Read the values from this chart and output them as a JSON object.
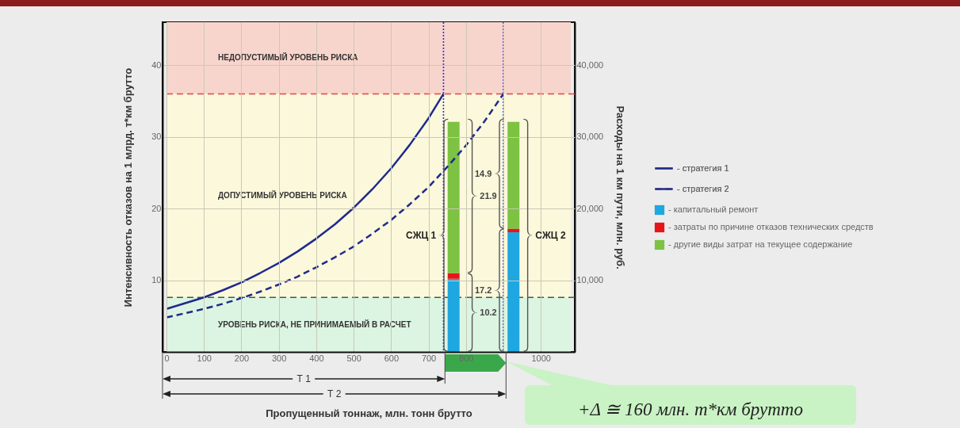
{
  "chart_data": {
    "type": "line",
    "xlabel": "Пропущенный тоннаж, млн. тонн брутто",
    "ylabel": "Интенсивность отказов на 1 млрд. т*км брутто",
    "y2label": "Расходы на 1 км пути, млн. руб.",
    "xlim": [
      0,
      1080
    ],
    "xticks": [
      0,
      100,
      200,
      300,
      400,
      500,
      600,
      700,
      800,
      {
        "value": 900,
        "label": null
      },
      1000
    ],
    "ylim": [
      0,
      46
    ],
    "yticks": [
      10,
      20,
      30,
      40
    ],
    "y2lim": [
      0,
      46000
    ],
    "y2ticks": [
      {
        "value": 10000,
        "label": "10,000"
      },
      {
        "value": 20000,
        "label": "20,000"
      },
      {
        "value": 30000,
        "label": "30,000"
      },
      {
        "value": 40000,
        "label": "40,000"
      }
    ],
    "grid": true,
    "legend": "right",
    "stacked": true,
    "series": [
      {
        "name": "- стратегия 1",
        "color": "#1f2a8c",
        "line_style": "solid",
        "x": [
          0,
          50,
          100,
          150,
          200,
          250,
          300,
          350,
          400,
          450,
          500,
          550,
          600,
          650,
          700,
          740
        ],
        "values": [
          6.0,
          6.8,
          7.6,
          8.6,
          9.7,
          11.0,
          12.4,
          14.0,
          15.8,
          17.8,
          20.1,
          22.7,
          25.6,
          28.9,
          32.6,
          36.0
        ]
      },
      {
        "name": "- стратегия 2",
        "color": "#1f2a8c",
        "line_style": "dashed",
        "x": [
          0,
          50,
          100,
          150,
          200,
          250,
          300,
          350,
          400,
          450,
          500,
          550,
          600,
          650,
          700,
          750,
          800,
          850,
          900
        ],
        "values": [
          4.8,
          5.4,
          6.0,
          6.7,
          7.5,
          8.4,
          9.4,
          10.5,
          11.8,
          13.2,
          14.7,
          16.5,
          18.4,
          20.6,
          23.0,
          25.8,
          28.8,
          32.2,
          36.0
        ]
      },
      {
        "name": "- капитальный ремонт",
        "type": "bar",
        "axis": "y2",
        "color": "#1ea7e1",
        "x": [
          767,
          927
        ],
        "values": [
          10200,
          16700
        ]
      },
      {
        "name": "- затраты по причине отказов технических средств",
        "type": "bar",
        "axis": "y2",
        "color": "#e8141c",
        "x": [
          767,
          927
        ],
        "values": [
          800,
          500
        ]
      },
      {
        "name": "- другие виды затрат на текущее содержание",
        "type": "bar",
        "axis": "y2",
        "color": "#7dc242",
        "x": [
          767,
          927
        ],
        "values": [
          21100,
          14900
        ]
      }
    ],
    "bands": [
      {
        "axis": "y",
        "from": 36,
        "to": 46,
        "label": "НЕДОПУСТИМЫЙ УРОВЕНЬ РИСКА",
        "color": "#f8d5cc"
      },
      {
        "axis": "y",
        "from": 7.6,
        "to": 36,
        "label": "ДОПУСТИМЫЙ УРОВЕНЬ РИСКА",
        "color": "#fbf8dc"
      },
      {
        "axis": "y",
        "from": 0,
        "to": 7.6,
        "label": "УРОВЕНЬ РИСКА, НЕ ПРИНИМАЕМЫЙ В РАСЧЕТ",
        "color": "#dcf5e2"
      }
    ],
    "ref_lines": [
      {
        "axis": "y",
        "value": 36,
        "color": "#e04848",
        "line_style": "dashed"
      },
      {
        "axis": "y",
        "value": 7.6,
        "color": "#3f5f3f",
        "line_style": "dashed"
      },
      {
        "axis": "x",
        "value": 740,
        "color": "#2a35d0",
        "line_style": "dotted"
      },
      {
        "axis": "x",
        "value": 900,
        "color": "#2a35d0",
        "line_style": "dotted"
      }
    ],
    "annotations": [
      "Т 1",
      "Т 2",
      "+Δ ≅ 160 млн. т*км брутто",
      "СЖЦ 1",
      "СЖЦ 2",
      "21.9",
      "14.9",
      "17.2",
      "10.2"
    ]
  }
}
